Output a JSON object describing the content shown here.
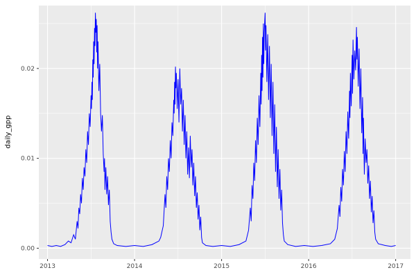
{
  "figure": {
    "background": "#FFFFFF"
  },
  "chart_data": {
    "type": "line",
    "title": "",
    "xlabel": "",
    "ylabel": "daily_gpp",
    "panel_bg": "#EBEBEB",
    "grid_color": "#FFFFFF",
    "line_color": "#0000FF",
    "tick_mark_color": "#333333",
    "tick_label_color": "#4D4D4D",
    "legend": "none",
    "grid": "on",
    "xlim": [
      2012.9,
      2017.17
    ],
    "ylim": [
      -0.0012,
      0.027
    ],
    "x_ticks": {
      "values": [
        2013,
        2014,
        2015,
        2016,
        2017
      ],
      "labels": [
        "2013",
        "2014",
        "2015",
        "2016",
        "2017"
      ]
    },
    "y_ticks": {
      "values": [
        0,
        0.01,
        0.02
      ],
      "labels": [
        "0.00",
        "0.01",
        "0.02"
      ]
    },
    "x_minor": [
      2013.5,
      2014.5,
      2015.5,
      2016.5
    ],
    "y_minor": [
      0.005,
      0.015,
      0.025
    ],
    "series": [
      {
        "name": "daily_gpp",
        "color": "#0000FF",
        "points": [
          [
            2013.0,
            0.0003
          ],
          [
            2013.05,
            0.0002
          ],
          [
            2013.1,
            0.0003
          ],
          [
            2013.15,
            0.0002
          ],
          [
            2013.2,
            0.0004
          ],
          [
            2013.24,
            0.0008
          ],
          [
            2013.27,
            0.0006
          ],
          [
            2013.3,
            0.0015
          ],
          [
            2013.32,
            0.001
          ],
          [
            2013.34,
            0.003
          ],
          [
            2013.35,
            0.0022
          ],
          [
            2013.36,
            0.0045
          ],
          [
            2013.37,
            0.0038
          ],
          [
            2013.38,
            0.006
          ],
          [
            2013.39,
            0.005
          ],
          [
            2013.4,
            0.0078
          ],
          [
            2013.41,
            0.0065
          ],
          [
            2013.42,
            0.009
          ],
          [
            2013.43,
            0.008
          ],
          [
            2013.44,
            0.011
          ],
          [
            2013.45,
            0.0095
          ],
          [
            2013.46,
            0.013
          ],
          [
            2013.47,
            0.0115
          ],
          [
            2013.48,
            0.015
          ],
          [
            2013.49,
            0.0135
          ],
          [
            2013.5,
            0.017
          ],
          [
            2013.505,
            0.0155
          ],
          [
            2013.51,
            0.0185
          ],
          [
            2013.515,
            0.0165
          ],
          [
            2013.52,
            0.021
          ],
          [
            2013.525,
            0.019
          ],
          [
            2013.53,
            0.023
          ],
          [
            2013.535,
            0.0205
          ],
          [
            2013.54,
            0.0245
          ],
          [
            2013.545,
            0.0225
          ],
          [
            2013.55,
            0.0262
          ],
          [
            2013.555,
            0.024
          ],
          [
            2013.56,
            0.0255
          ],
          [
            2013.565,
            0.0218
          ],
          [
            2013.57,
            0.0248
          ],
          [
            2013.575,
            0.02
          ],
          [
            2013.58,
            0.023
          ],
          [
            2013.59,
            0.0175
          ],
          [
            2013.6,
            0.0205
          ],
          [
            2013.61,
            0.015
          ],
          [
            2013.62,
            0.013
          ],
          [
            2013.63,
            0.0148
          ],
          [
            2013.64,
            0.0105
          ],
          [
            2013.65,
            0.0085
          ],
          [
            2013.655,
            0.01
          ],
          [
            2013.66,
            0.0065
          ],
          [
            2013.67,
            0.009
          ],
          [
            2013.68,
            0.006
          ],
          [
            2013.69,
            0.008
          ],
          [
            2013.7,
            0.0048
          ],
          [
            2013.71,
            0.0065
          ],
          [
            2013.72,
            0.003
          ],
          [
            2013.73,
            0.0018
          ],
          [
            2013.74,
            0.001
          ],
          [
            2013.76,
            0.0005
          ],
          [
            2013.8,
            0.0003
          ],
          [
            2013.9,
            0.0002
          ],
          [
            2014.0,
            0.0003
          ],
          [
            2014.1,
            0.0002
          ],
          [
            2014.2,
            0.0004
          ],
          [
            2014.28,
            0.0008
          ],
          [
            2014.3,
            0.0012
          ],
          [
            2014.33,
            0.0025
          ],
          [
            2014.35,
            0.006
          ],
          [
            2014.36,
            0.0045
          ],
          [
            2014.37,
            0.008
          ],
          [
            2014.38,
            0.0065
          ],
          [
            2014.39,
            0.01
          ],
          [
            2014.4,
            0.0085
          ],
          [
            2014.41,
            0.012
          ],
          [
            2014.42,
            0.01
          ],
          [
            2014.43,
            0.014
          ],
          [
            2014.44,
            0.0125
          ],
          [
            2014.45,
            0.0165
          ],
          [
            2014.455,
            0.015
          ],
          [
            2014.46,
            0.0185
          ],
          [
            2014.465,
            0.016
          ],
          [
            2014.47,
            0.0202
          ],
          [
            2014.475,
            0.0178
          ],
          [
            2014.48,
            0.0195
          ],
          [
            2014.49,
            0.0155
          ],
          [
            2014.5,
            0.0188
          ],
          [
            2014.51,
            0.014
          ],
          [
            2014.52,
            0.02
          ],
          [
            2014.53,
            0.016
          ],
          [
            2014.54,
            0.0178
          ],
          [
            2014.55,
            0.013
          ],
          [
            2014.56,
            0.0165
          ],
          [
            2014.57,
            0.0115
          ],
          [
            2014.58,
            0.0148
          ],
          [
            2014.59,
            0.01
          ],
          [
            2014.6,
            0.013
          ],
          [
            2014.61,
            0.0082
          ],
          [
            2014.62,
            0.0112
          ],
          [
            2014.63,
            0.0078
          ],
          [
            2014.64,
            0.0125
          ],
          [
            2014.65,
            0.009
          ],
          [
            2014.66,
            0.011
          ],
          [
            2014.67,
            0.007
          ],
          [
            2014.68,
            0.0095
          ],
          [
            2014.69,
            0.0058
          ],
          [
            2014.7,
            0.008
          ],
          [
            2014.71,
            0.0045
          ],
          [
            2014.72,
            0.0062
          ],
          [
            2014.73,
            0.0032
          ],
          [
            2014.74,
            0.0048
          ],
          [
            2014.75,
            0.002
          ],
          [
            2014.76,
            0.0035
          ],
          [
            2014.77,
            0.0012
          ],
          [
            2014.78,
            0.0006
          ],
          [
            2014.82,
            0.0003
          ],
          [
            2014.9,
            0.0002
          ],
          [
            2015.0,
            0.0003
          ],
          [
            2015.1,
            0.0002
          ],
          [
            2015.2,
            0.0004
          ],
          [
            2015.28,
            0.0008
          ],
          [
            2015.31,
            0.002
          ],
          [
            2015.33,
            0.0045
          ],
          [
            2015.34,
            0.003
          ],
          [
            2015.35,
            0.007
          ],
          [
            2015.36,
            0.0055
          ],
          [
            2015.37,
            0.0095
          ],
          [
            2015.38,
            0.0075
          ],
          [
            2015.39,
            0.012
          ],
          [
            2015.4,
            0.0095
          ],
          [
            2015.41,
            0.0145
          ],
          [
            2015.42,
            0.0115
          ],
          [
            2015.43,
            0.017
          ],
          [
            2015.44,
            0.0135
          ],
          [
            2015.45,
            0.0195
          ],
          [
            2015.455,
            0.016
          ],
          [
            2015.46,
            0.0215
          ],
          [
            2015.465,
            0.0175
          ],
          [
            2015.47,
            0.0235
          ],
          [
            2015.475,
            0.019
          ],
          [
            2015.48,
            0.025
          ],
          [
            2015.485,
            0.0205
          ],
          [
            2015.49,
            0.024
          ],
          [
            2015.5,
            0.0262
          ],
          [
            2015.505,
            0.022
          ],
          [
            2015.51,
            0.0248
          ],
          [
            2015.52,
            0.0185
          ],
          [
            2015.53,
            0.0238
          ],
          [
            2015.54,
            0.0165
          ],
          [
            2015.55,
            0.0225
          ],
          [
            2015.56,
            0.0145
          ],
          [
            2015.57,
            0.0205
          ],
          [
            2015.58,
            0.0125
          ],
          [
            2015.59,
            0.0185
          ],
          [
            2015.6,
            0.0105
          ],
          [
            2015.61,
            0.016
          ],
          [
            2015.62,
            0.0085
          ],
          [
            2015.63,
            0.0135
          ],
          [
            2015.64,
            0.0068
          ],
          [
            2015.65,
            0.011
          ],
          [
            2015.66,
            0.0055
          ],
          [
            2015.67,
            0.0088
          ],
          [
            2015.68,
            0.0042
          ],
          [
            2015.69,
            0.0065
          ],
          [
            2015.7,
            0.0028
          ],
          [
            2015.71,
            0.0015
          ],
          [
            2015.72,
            0.0008
          ],
          [
            2015.76,
            0.0004
          ],
          [
            2015.85,
            0.0002
          ],
          [
            2015.95,
            0.0003
          ],
          [
            2016.05,
            0.0002
          ],
          [
            2016.15,
            0.0003
          ],
          [
            2016.25,
            0.0005
          ],
          [
            2016.3,
            0.001
          ],
          [
            2016.33,
            0.0022
          ],
          [
            2016.35,
            0.0048
          ],
          [
            2016.36,
            0.0035
          ],
          [
            2016.37,
            0.0068
          ],
          [
            2016.38,
            0.0052
          ],
          [
            2016.39,
            0.0088
          ],
          [
            2016.4,
            0.007
          ],
          [
            2016.41,
            0.0108
          ],
          [
            2016.42,
            0.0085
          ],
          [
            2016.43,
            0.013
          ],
          [
            2016.44,
            0.0105
          ],
          [
            2016.45,
            0.0152
          ],
          [
            2016.46,
            0.0122
          ],
          [
            2016.47,
            0.0175
          ],
          [
            2016.475,
            0.0145
          ],
          [
            2016.48,
            0.0195
          ],
          [
            2016.49,
            0.0158
          ],
          [
            2016.5,
            0.0215
          ],
          [
            2016.505,
            0.0172
          ],
          [
            2016.51,
            0.0232
          ],
          [
            2016.52,
            0.0188
          ],
          [
            2016.53,
            0.022
          ],
          [
            2016.54,
            0.0198
          ],
          [
            2016.55,
            0.0246
          ],
          [
            2016.555,
            0.021
          ],
          [
            2016.56,
            0.0235
          ],
          [
            2016.57,
            0.018
          ],
          [
            2016.58,
            0.0222
          ],
          [
            2016.59,
            0.0155
          ],
          [
            2016.6,
            0.02
          ],
          [
            2016.61,
            0.0128
          ],
          [
            2016.62,
            0.0168
          ],
          [
            2016.625,
            0.0105
          ],
          [
            2016.63,
            0.0145
          ],
          [
            2016.64,
            0.0082
          ],
          [
            2016.65,
            0.0122
          ],
          [
            2016.66,
            0.0095
          ],
          [
            2016.67,
            0.011
          ],
          [
            2016.68,
            0.0072
          ],
          [
            2016.69,
            0.0092
          ],
          [
            2016.7,
            0.0055
          ],
          [
            2016.71,
            0.0075
          ],
          [
            2016.72,
            0.004
          ],
          [
            2016.73,
            0.0058
          ],
          [
            2016.74,
            0.0028
          ],
          [
            2016.75,
            0.0042
          ],
          [
            2016.76,
            0.0018
          ],
          [
            2016.77,
            0.001
          ],
          [
            2016.8,
            0.0005
          ],
          [
            2016.88,
            0.0003
          ],
          [
            2016.95,
            0.0002
          ],
          [
            2017.0,
            0.0003
          ]
        ]
      }
    ]
  }
}
